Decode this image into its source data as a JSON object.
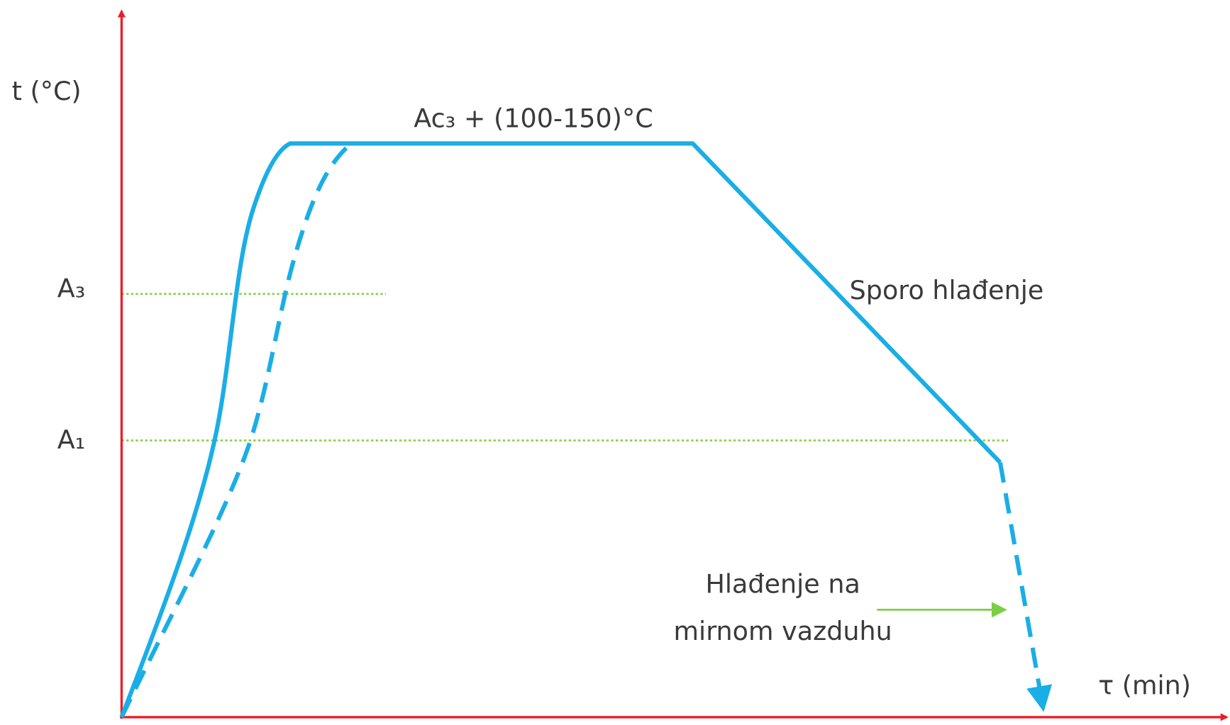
{
  "axes": {
    "y_label": "t (°C)",
    "x_label": "τ (min)"
  },
  "levels": [
    {
      "label": "A₃"
    },
    {
      "label": "A₁"
    }
  ],
  "annotations": {
    "hold": "Ac₃ + (100-150)°C",
    "slow_cooling": "Sporo hlađenje",
    "air_cooling": [
      "Hlađenje na",
      "mirnom vazduhu"
    ]
  }
}
